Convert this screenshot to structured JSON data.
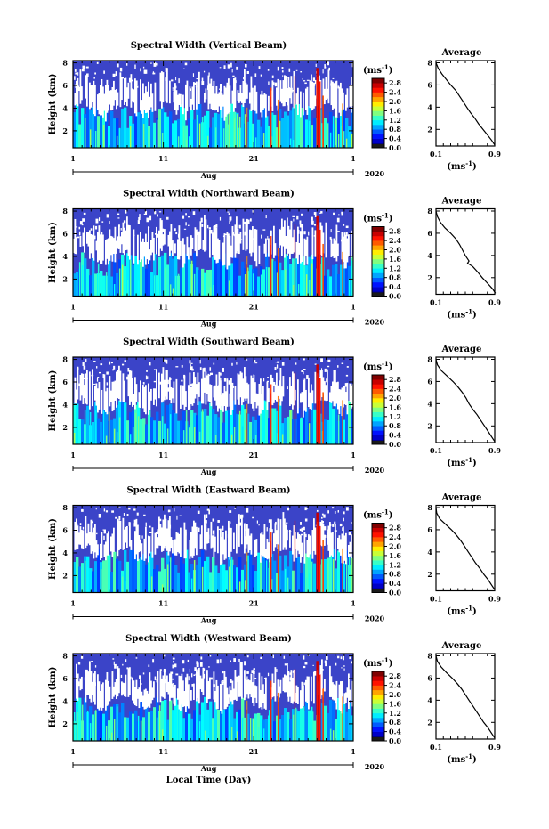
{
  "chart_data": [
    {
      "type": "heatmap",
      "title": "Spectral Width (Vertical Beam)",
      "ylabel": "Height (km)",
      "ylim": [
        0.5,
        8.2
      ],
      "yticks": [
        "2",
        "4",
        "6",
        "8"
      ],
      "xticks": [
        "1",
        "11",
        "21",
        "1"
      ],
      "month_label": "Aug",
      "year_label": "2020",
      "colorbar": {
        "unit": "(ms",
        "unit_exp": "-1",
        "unit_close": ")",
        "ticks": [
          "0.0",
          "0.4",
          "0.8",
          "1.2",
          "1.6",
          "2.0",
          "2.4",
          "2.8"
        ],
        "range": [
          0,
          3.0
        ]
      },
      "profile": {
        "title": "Average",
        "xlabel": "(ms",
        "xlabel_exp": "-1",
        "xlabel_close": ")",
        "xticks": [
          "0.1",
          "0.9"
        ],
        "yticks": [
          "2",
          "4",
          "6",
          "8"
        ],
        "xlim": [
          0.1,
          0.9
        ],
        "ylim": [
          0.5,
          8.2
        ],
        "height": [
          8.0,
          7.5,
          7.0,
          6.5,
          6.0,
          5.5,
          5.0,
          4.5,
          4.0,
          3.5,
          3.0,
          2.5,
          2.0,
          1.5,
          1.0,
          0.6
        ],
        "width": [
          0.1,
          0.13,
          0.18,
          0.24,
          0.3,
          0.37,
          0.42,
          0.47,
          0.52,
          0.57,
          0.63,
          0.68,
          0.74,
          0.8,
          0.86,
          0.9
        ]
      }
    },
    {
      "type": "heatmap",
      "title": "Spectral Width (Northward Beam)",
      "ylabel": "Height (km)",
      "ylim": [
        0.5,
        8.2
      ],
      "yticks": [
        "2",
        "4",
        "6",
        "8"
      ],
      "xticks": [
        "1",
        "11",
        "21",
        "1"
      ],
      "month_label": "Aug",
      "year_label": "2020",
      "colorbar": {
        "unit": "(ms",
        "unit_exp": "-1",
        "unit_close": ")",
        "ticks": [
          "0.0",
          "0.4",
          "0.8",
          "1.2",
          "1.6",
          "2.0",
          "2.4",
          "2.8"
        ],
        "range": [
          0,
          3.0
        ]
      },
      "profile": {
        "title": "Average",
        "xlabel": "(ms",
        "xlabel_exp": "-1",
        "xlabel_close": ")",
        "xticks": [
          "0.1",
          "0.9"
        ],
        "yticks": [
          "2",
          "4",
          "6",
          "8"
        ],
        "xlim": [
          0.1,
          0.9
        ],
        "ylim": [
          0.5,
          8.2
        ],
        "height": [
          8.0,
          7.5,
          7.0,
          6.5,
          6.0,
          5.5,
          5.0,
          4.5,
          4.0,
          3.5,
          3.3,
          3.0,
          2.5,
          2.0,
          1.5,
          1.0,
          0.6
        ],
        "width": [
          0.1,
          0.12,
          0.16,
          0.22,
          0.3,
          0.37,
          0.42,
          0.46,
          0.5,
          0.55,
          0.53,
          0.6,
          0.67,
          0.73,
          0.8,
          0.87,
          0.91
        ]
      }
    },
    {
      "type": "heatmap",
      "title": "Spectral Width (Southward Beam)",
      "ylabel": "Height (km)",
      "ylim": [
        0.5,
        8.2
      ],
      "yticks": [
        "2",
        "4",
        "6",
        "8"
      ],
      "xticks": [
        "1",
        "11",
        "21",
        "1"
      ],
      "month_label": "Aug",
      "year_label": "2020",
      "colorbar": {
        "unit": "(ms",
        "unit_exp": "-1",
        "unit_close": ")",
        "ticks": [
          "0.0",
          "0.4",
          "0.8",
          "1.2",
          "1.6",
          "2.0",
          "2.4",
          "2.8"
        ],
        "range": [
          0,
          3.0
        ]
      },
      "profile": {
        "title": "Average",
        "xlabel": "(ms",
        "xlabel_exp": "-1",
        "xlabel_close": ")",
        "xticks": [
          "0.1",
          "0.9"
        ],
        "yticks": [
          "2",
          "4",
          "6",
          "8"
        ],
        "xlim": [
          0.1,
          0.9
        ],
        "ylim": [
          0.5,
          8.2
        ],
        "height": [
          8.0,
          7.5,
          7.0,
          6.5,
          6.0,
          5.5,
          5.0,
          4.5,
          4.0,
          3.5,
          3.0,
          2.5,
          2.0,
          1.5,
          1.0,
          0.6
        ],
        "width": [
          0.1,
          0.12,
          0.17,
          0.25,
          0.33,
          0.4,
          0.46,
          0.51,
          0.55,
          0.6,
          0.66,
          0.71,
          0.76,
          0.81,
          0.86,
          0.9
        ]
      }
    },
    {
      "type": "heatmap",
      "title": "Spectral Width (Eastward Beam)",
      "ylabel": "Height (km)",
      "ylim": [
        0.5,
        8.2
      ],
      "yticks": [
        "2",
        "4",
        "6",
        "8"
      ],
      "xticks": [
        "1",
        "11",
        "21",
        "1"
      ],
      "month_label": "Aug",
      "year_label": "2020",
      "colorbar": {
        "unit": "(ms",
        "unit_exp": "-1",
        "unit_close": ")",
        "ticks": [
          "0.0",
          "0.4",
          "0.8",
          "1.2",
          "1.6",
          "2.0",
          "2.4",
          "2.8"
        ],
        "range": [
          0,
          3.0
        ]
      },
      "profile": {
        "title": "Average",
        "xlabel": "(ms",
        "xlabel_exp": "-1",
        "xlabel_close": ")",
        "xticks": [
          "0.1",
          "0.9"
        ],
        "yticks": [
          "2",
          "4",
          "6",
          "8"
        ],
        "xlim": [
          0.1,
          0.9
        ],
        "ylim": [
          0.5,
          8.2
        ],
        "height": [
          8.0,
          7.5,
          7.0,
          6.5,
          6.0,
          5.5,
          5.0,
          4.5,
          4.0,
          3.5,
          3.0,
          2.5,
          2.0,
          1.5,
          1.0,
          0.6
        ],
        "width": [
          0.1,
          0.11,
          0.15,
          0.23,
          0.31,
          0.38,
          0.44,
          0.49,
          0.54,
          0.59,
          0.64,
          0.7,
          0.75,
          0.81,
          0.86,
          0.9
        ]
      }
    },
    {
      "type": "heatmap",
      "title": "Spectral Width (Westward Beam)",
      "ylabel": "Height (km)",
      "ylim": [
        0.5,
        8.2
      ],
      "yticks": [
        "2",
        "4",
        "6",
        "8"
      ],
      "xticks": [
        "1",
        "11",
        "21",
        "1"
      ],
      "month_label": "Aug",
      "year_label": "2020",
      "xlabel": "Local Time (Day)",
      "colorbar": {
        "unit": "(ms",
        "unit_exp": "-1",
        "unit_close": ")",
        "ticks": [
          "0.0",
          "0.4",
          "0.8",
          "1.2",
          "1.6",
          "2.0",
          "2.4",
          "2.8"
        ],
        "range": [
          0,
          3.0
        ]
      },
      "profile": {
        "title": "Average",
        "xlabel": "(ms",
        "xlabel_exp": "-1",
        "xlabel_close": ")",
        "xticks": [
          "0.1",
          "0.9"
        ],
        "yticks": [
          "2",
          "4",
          "6",
          "8"
        ],
        "xlim": [
          0.1,
          0.9
        ],
        "ylim": [
          0.5,
          8.2
        ],
        "height": [
          8.0,
          7.5,
          7.0,
          6.5,
          6.0,
          5.5,
          5.0,
          4.5,
          4.0,
          3.5,
          3.0,
          2.5,
          2.0,
          1.5,
          1.0,
          0.6
        ],
        "width": [
          0.1,
          0.12,
          0.17,
          0.24,
          0.32,
          0.39,
          0.45,
          0.5,
          0.55,
          0.6,
          0.65,
          0.7,
          0.75,
          0.81,
          0.86,
          0.9
        ]
      }
    }
  ]
}
